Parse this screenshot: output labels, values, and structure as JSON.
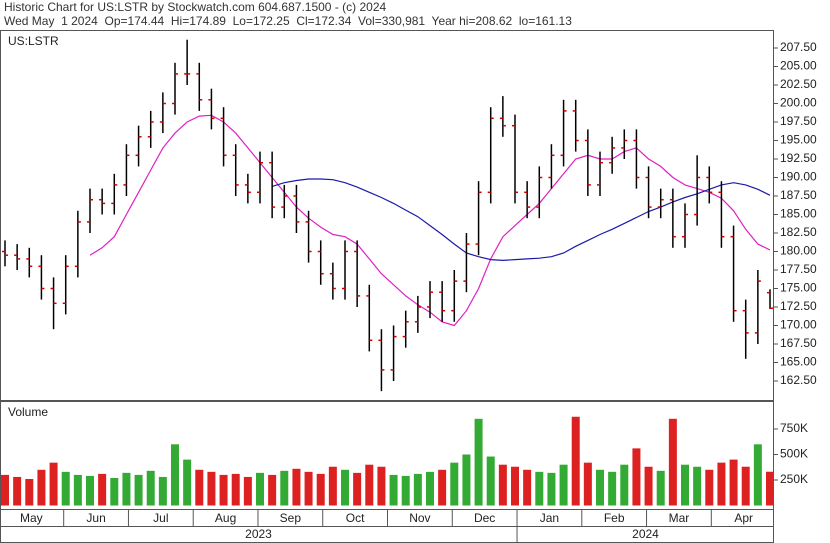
{
  "header": {
    "title": "Historic Chart for US:LSTR by Stockwatch.com 604.687.1500 - (c) 2024",
    "quote": "Wed May  1 2024  Op=174.44  Hi=174.89  Lo=172.25  Cl=172.34  Vol=330,981  Year hi=208.62  lo=161.13"
  },
  "chart_data": {
    "type": "ohlc",
    "series": [
      {
        "name": "US:LSTR",
        "color": "#000000",
        "tick_color": "#cc0000",
        "open": [
          180,
          179.5,
          179,
          178,
          175,
          173,
          178,
          184,
          187,
          186.5,
          189,
          193,
          195.5,
          197.5,
          200,
          204,
          204,
          200.5,
          198,
          193,
          189,
          188,
          192,
          186,
          187.5,
          184,
          180,
          177,
          175,
          180,
          174,
          168,
          164,
          168.5,
          170.5,
          172.5,
          174.5,
          172,
          176,
          181,
          188,
          198,
          197,
          188,
          186,
          190,
          193,
          199,
          195,
          189,
          192,
          194,
          195,
          190,
          186,
          187,
          182,
          185,
          190,
          188,
          182,
          172,
          169,
          174.44
        ],
        "high": [
          181.5,
          181,
          180.5,
          179.5,
          176.5,
          179.5,
          185.5,
          188.5,
          188.5,
          190.5,
          194.5,
          197,
          199,
          201.5,
          205.5,
          208.62,
          205.5,
          202,
          199.5,
          194.5,
          190.5,
          193.5,
          193.5,
          189,
          189,
          185.5,
          181.5,
          178.5,
          181.5,
          181.5,
          175.5,
          169.5,
          170,
          172,
          174,
          176,
          176,
          177.5,
          182.5,
          189.5,
          199.5,
          201,
          198.5,
          189.5,
          191.5,
          194.5,
          200.5,
          200.5,
          196.5,
          193.5,
          195.5,
          196.5,
          196.5,
          191.5,
          188.5,
          188.5,
          186.5,
          193,
          191.5,
          189.5,
          183.5,
          173.5,
          177.5,
          174.89
        ],
        "low": [
          178,
          177.5,
          176.5,
          173.5,
          169.5,
          171.5,
          176.5,
          182.5,
          185,
          185,
          187.5,
          191.5,
          194,
          196,
          198.5,
          202.5,
          199,
          196.5,
          191.5,
          187.5,
          186.5,
          186.5,
          184.5,
          184.5,
          182.5,
          178.5,
          175.5,
          173.5,
          173.5,
          172.5,
          166.5,
          161.13,
          162.5,
          167,
          169,
          171,
          170.5,
          170.5,
          174.5,
          179.5,
          186.5,
          195.5,
          186.5,
          184.5,
          184.5,
          188.5,
          191.5,
          193.5,
          187.5,
          187.5,
          190.5,
          192.5,
          188.5,
          184.5,
          184.5,
          180.5,
          180.5,
          183.5,
          186.5,
          180.5,
          170.5,
          165.5,
          167.5,
          172.25
        ],
        "close": [
          179.5,
          179,
          178,
          175,
          173,
          178,
          184,
          187,
          186.5,
          189,
          193,
          195.5,
          197.5,
          200,
          204,
          204,
          200.5,
          198,
          193,
          189,
          188,
          192,
          186,
          187.5,
          184,
          180,
          177,
          175,
          180,
          174,
          168,
          164,
          168.5,
          170.5,
          172.5,
          174.5,
          172,
          176,
          181,
          188,
          198,
          197,
          188,
          186,
          190,
          193,
          199,
          195,
          189,
          192,
          194,
          195,
          190,
          186,
          187,
          182,
          185,
          190,
          188,
          182,
          172,
          169,
          176,
          172.34
        ]
      }
    ],
    "averages": [
      {
        "color": "#e020c0",
        "values": [
          null,
          null,
          null,
          null,
          null,
          null,
          null,
          179.5,
          180.5,
          182,
          185,
          188,
          191,
          194,
          196,
          197.5,
          198.3,
          198.4,
          197.5,
          196,
          194,
          192,
          190,
          188,
          186,
          184.5,
          183.3,
          182.3,
          182,
          181,
          179,
          177,
          175.5,
          174,
          172.8,
          171.8,
          170.5,
          170,
          172,
          175,
          179,
          182,
          183.5,
          185,
          186.5,
          188.5,
          190.5,
          192.5,
          193,
          192.5,
          192.5,
          193.5,
          194,
          192.5,
          191.5,
          190,
          189,
          188.5,
          188,
          187.2,
          185.5,
          183,
          181,
          180.2
        ]
      },
      {
        "color": "#1a1aa8",
        "values": [
          null,
          null,
          null,
          null,
          null,
          null,
          null,
          null,
          null,
          null,
          null,
          null,
          null,
          null,
          null,
          null,
          null,
          null,
          null,
          null,
          null,
          null,
          188.8,
          189.3,
          189.6,
          189.8,
          189.8,
          189.7,
          189.3,
          188.7,
          188,
          187.3,
          186.5,
          185.6,
          184.7,
          183.5,
          182.3,
          181,
          179.8,
          179.3,
          178.9,
          178.8,
          178.9,
          179,
          179.1,
          179.3,
          179.8,
          180.7,
          181.5,
          182.3,
          183,
          183.8,
          184.6,
          185.4,
          186,
          186.7,
          187.3,
          187.8,
          188.4,
          189,
          189.3,
          189,
          188.4,
          187.6
        ]
      }
    ],
    "ylim": [
      160,
      210
    ],
    "yticks": [
      {
        "value": 162.5,
        "label": "162.50"
      },
      {
        "value": 165,
        "label": "165.00"
      },
      {
        "value": 167.5,
        "label": "167.50"
      },
      {
        "value": 170,
        "label": "170.00"
      },
      {
        "value": 172.5,
        "label": "172.50"
      },
      {
        "value": 175,
        "label": "175.00"
      },
      {
        "value": 177.5,
        "label": "177.50"
      },
      {
        "value": 180,
        "label": "180.00"
      },
      {
        "value": 182.5,
        "label": "182.50"
      },
      {
        "value": 185,
        "label": "185.00"
      },
      {
        "value": 187.5,
        "label": "187.50"
      },
      {
        "value": 190,
        "label": "190.00"
      },
      {
        "value": 192.5,
        "label": "192.50"
      },
      {
        "value": 195,
        "label": "195.00"
      },
      {
        "value": 197.5,
        "label": "197.50"
      },
      {
        "value": 200,
        "label": "200.00"
      },
      {
        "value": 202.5,
        "label": "202.50"
      },
      {
        "value": 205,
        "label": "205.00"
      },
      {
        "value": 207.5,
        "label": "207.50"
      }
    ],
    "volume": {
      "name": "Volume",
      "up_color": "#33aa33",
      "down_color": "#dd2020",
      "values": [
        300000,
        280000,
        260000,
        350000,
        420000,
        330000,
        300000,
        290000,
        310000,
        270000,
        320000,
        300000,
        340000,
        280000,
        600000,
        450000,
        350000,
        330000,
        300000,
        310000,
        280000,
        320000,
        300000,
        340000,
        360000,
        330000,
        310000,
        380000,
        350000,
        320000,
        400000,
        380000,
        300000,
        290000,
        310000,
        330000,
        350000,
        420000,
        500000,
        850000,
        480000,
        400000,
        380000,
        350000,
        330000,
        320000,
        400000,
        870000,
        420000,
        350000,
        330000,
        400000,
        560000,
        380000,
        340000,
        850000,
        400000,
        380000,
        350000,
        420000,
        450000,
        380000,
        600000,
        330981
      ],
      "ylim": [
        0,
        1000000
      ],
      "yticks": [
        {
          "value": 250000,
          "label": "250K"
        },
        {
          "value": 500000,
          "label": "500K"
        },
        {
          "value": 750000,
          "label": "750K"
        }
      ]
    },
    "months": [
      "May",
      "Jun",
      "Jul",
      "Aug",
      "Sep",
      "Oct",
      "Nov",
      "Dec",
      "Jan",
      "Feb",
      "Mar",
      "Apr"
    ],
    "years": [
      "2023",
      "2024"
    ]
  }
}
